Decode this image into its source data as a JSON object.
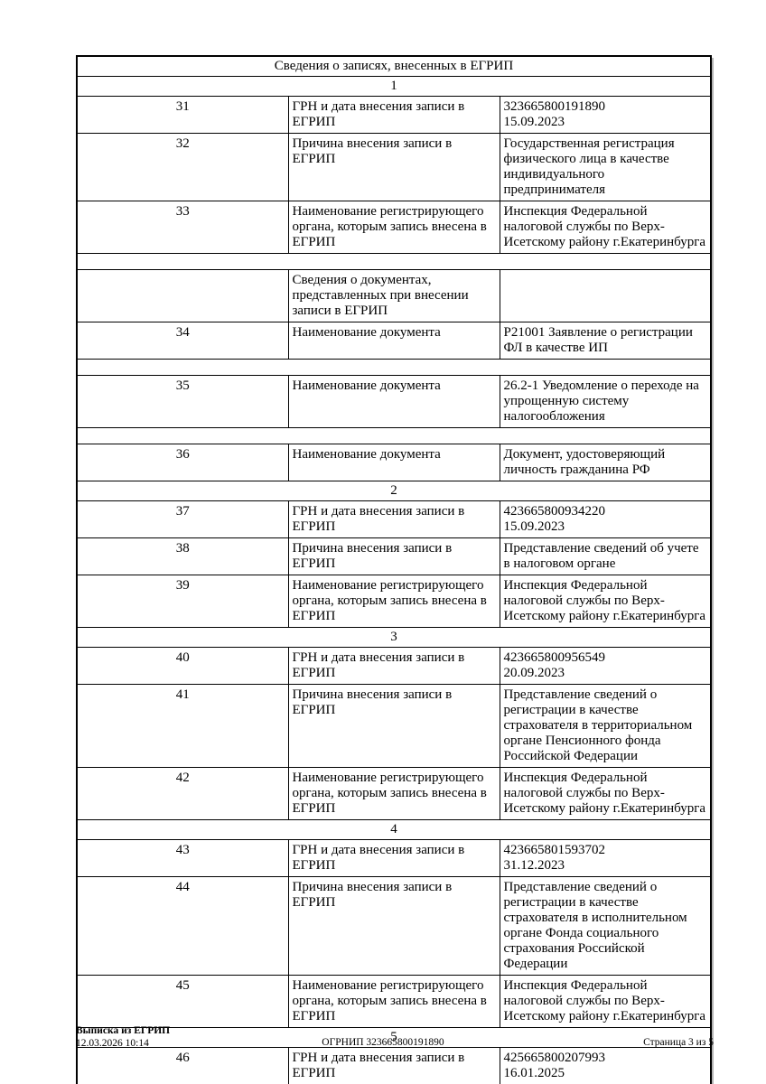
{
  "colors": {
    "background": "#ffffff",
    "text": "#000000",
    "table_border": "#000000",
    "table_shadow": "#b4b4b4"
  },
  "table": {
    "title": "Сведения о записях, внесенных в ЕГРИП",
    "rows": [
      {
        "type": "section",
        "text": "1"
      },
      {
        "type": "data",
        "num": "31",
        "label": "ГРН и дата внесения записи в ЕГРИП",
        "value": "323665800191890\n15.09.2023"
      },
      {
        "type": "data",
        "num": "32",
        "label": "Причина внесения записи в ЕГРИП",
        "value": "Государственная регистрация физического лица в качестве индивидуального предпринимателя"
      },
      {
        "type": "data",
        "num": "33",
        "label": "Наименование регистрирующего органа, которым запись внесена в ЕГРИП",
        "value": "Инспекция Федеральной налоговой службы по Верх-Исетскому району г.Екатеринбурга"
      },
      {
        "type": "spacer"
      },
      {
        "type": "data",
        "num": "",
        "label": "Сведения о документах, представленных при внесении записи в ЕГРИП",
        "value": ""
      },
      {
        "type": "data",
        "num": "34",
        "label": "Наименование документа",
        "value": "Р21001 Заявление о регистрации ФЛ в качестве ИП"
      },
      {
        "type": "spacer"
      },
      {
        "type": "data",
        "num": "35",
        "label": "Наименование документа",
        "value": "26.2-1 Уведомление о переходе на упрощенную систему налогообложения"
      },
      {
        "type": "spacer"
      },
      {
        "type": "data",
        "num": "36",
        "label": "Наименование документа",
        "value": "Документ, удостоверяющий личность гражданина РФ"
      },
      {
        "type": "section",
        "text": "2"
      },
      {
        "type": "data",
        "num": "37",
        "label": "ГРН и дата внесения записи в ЕГРИП",
        "value": "423665800934220\n15.09.2023"
      },
      {
        "type": "data",
        "num": "38",
        "label": "Причина внесения записи в ЕГРИП",
        "value": "Представление сведений об учете в налоговом органе"
      },
      {
        "type": "data",
        "num": "39",
        "label": "Наименование регистрирующего органа, которым запись внесена в ЕГРИП",
        "value": "Инспекция Федеральной налоговой службы по Верх-Исетскому району г.Екатеринбурга"
      },
      {
        "type": "section",
        "text": "3"
      },
      {
        "type": "data",
        "num": "40",
        "label": "ГРН и дата внесения записи в ЕГРИП",
        "value": "423665800956549\n20.09.2023"
      },
      {
        "type": "data",
        "num": "41",
        "label": "Причина внесения записи в ЕГРИП",
        "value": "Представление сведений о регистрации в качестве страхователя в территориальном органе Пенсионного фонда Российской Федерации"
      },
      {
        "type": "data",
        "num": "42",
        "label": "Наименование регистрирующего органа, которым запись внесена в ЕГРИП",
        "value": "Инспекция Федеральной налоговой службы по Верх-Исетскому району г.Екатеринбурга"
      },
      {
        "type": "section",
        "text": "4"
      },
      {
        "type": "data",
        "num": "43",
        "label": "ГРН и дата внесения записи в ЕГРИП",
        "value": "423665801593702\n31.12.2023"
      },
      {
        "type": "data",
        "num": "44",
        "label": "Причина внесения записи в ЕГРИП",
        "value": "Представление сведений о регистрации в качестве страхователя в исполнительном органе Фонда социального страхования Российской Федерации"
      },
      {
        "type": "data",
        "num": "45",
        "label": "Наименование регистрирующего органа, которым запись внесена в ЕГРИП",
        "value": "Инспекция Федеральной налоговой службы по Верх-Исетскому району г.Екатеринбурга"
      },
      {
        "type": "section",
        "text": "5"
      },
      {
        "type": "data",
        "num": "46",
        "label": "ГРН и дата внесения записи в ЕГРИП",
        "value": "425665800207993\n16.01.2025"
      }
    ]
  },
  "footer": {
    "doc_type": "Выписка из ЕГРИП",
    "datetime": "12.03.2026 10:14",
    "ogrnip": "ОГРНИП 323665800191890",
    "page": "Страница 3 из 5"
  }
}
